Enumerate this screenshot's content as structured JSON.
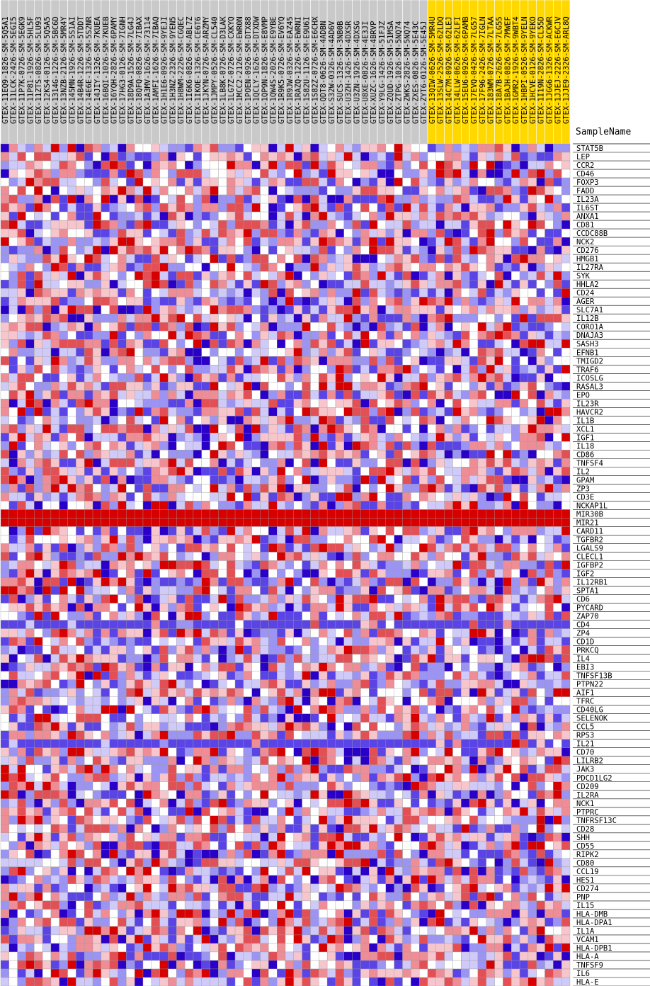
{
  "chart_data": {
    "type": "heatmap",
    "title": "",
    "header_label": "SampleName",
    "colors": {
      "high": "#d60000",
      "mid": "#ffffff",
      "low": "#2a00c8",
      "highlight_column_bg": "#ffd800",
      "normal_column_bg": "#c9c9c9"
    },
    "color_scale": "row-normalized: red = high, blue = low",
    "columns": [
      "GTEX-11EQ9-1826-SM-5Q5A1",
      "GTEX-11LCK-2426-SM-5EGI5",
      "GTEX-11P7K-0726-SM-5EGK9",
      "GTEX-11P81-1926-SM-5HL5F",
      "GTEX-11ZTS-0826-SM-5LU93",
      "GTEX-12KS4-0126-SM-5Q5A5",
      "GTEX-1314G-1226-SM-5BC6D",
      "GTEX-13NZB-2126-SM-5MR4Y",
      "GTEX-145MN-1926-SM-5S1AI",
      "GTEX-14B4R-1226-SM-5TDDT",
      "GTEX-14E6E-1326-SM-5S2NR",
      "GTEX-14JIY-1326-SM-7KUEA",
      "GTEX-16BQI-1026-SM-7KUEB",
      "GTEX-16YQH-2826-SM-6PAMY",
      "GTEX-17HG3-0126-SM-7IGNH",
      "GTEX-18D9A-1526-SM-7LG4J",
      "GTEX-18QFQ-0826-SM-7IBAX",
      "GTEX-1A3MV-1626-SM-73114",
      "GTEX-1AMFI-1626-SM-7IBAQ",
      "GTEX-1H1E6-0926-SM-9YEJI",
      "GTEX-1H3NZ-2326-SM-9YEN5",
      "GTEX-1H8WM-2226-SM-CGQEC",
      "GTEX-1I6K6-0826-SM-ABL7Z",
      "GTEX-1IKOE-1326-SM-CE6T6",
      "GTEX-1JKYN-0726-SM-ARZMY",
      "GTEX-1JMPY-0526-SM-CL540",
      "GTEX-1LB8K-0726-SM-D3LAK",
      "GTEX-1LG7Z-0726-SM-CXKYQ",
      "GTEX-1MCC2-2126-SM-EWR0N",
      "GTEX-1POEN-0926-SM-DTX88",
      "GTEX-1QCLY-1626-SM-DTXDW",
      "GTEX-1QP9N-1826-SM-E8VMP",
      "GTEX-1QW4S-2026-SM-E9YBE",
      "GTEX-1R9K5-0726-SM-EV6YQ",
      "GTEX-1R9JW-0326-SM-EAZ45",
      "GTEX-1RAZQ-1226-SM-EWRNI",
      "GTEX-1S82U-1126-SM-E9U6I",
      "GTEX-1S82Z-0726-SM-E6CHX",
      "GTEX-QDT8-0626-SM-4ADBN",
      "GTEX-S32W-0326-SM-4AD6V",
      "GTEX-SUCS-1326-SM-3NB0B",
      "GTEX-U3ZH-1426-SM-4DXSR",
      "GTEX-U3ZN-1926-SM-4DXSG",
      "GTEX-U8XE-0826-SM-4E3JI",
      "GTEX-XUZC-1626-SM-4BRVP",
      "GTEX-Y9LG-1426-SM-51FJZ",
      "GTEX-ZQUD-1926-SM-51MSA",
      "GTEX-ZTPG-1026-SM-5NQ74",
      "GTEX-ZWKS-2826-SM-5NQ74",
      "GTEX-ZXES-0826-SM-5E43C",
      "GTEX-ZYT6-0126-SM-5E45J",
      "GTEX-13QIW-0626-SM-5MR4U",
      "GTEX-13SLW-2526-SM-62LDQ",
      "GTEX-14C7M-0926-SM-62LEJ",
      "GTEX-14LLW-0626-SM-62LFI",
      "GTEX-15EU6-0926-SM-6PAMB",
      "GTEX-17EVQ-0426-SM-7LG57",
      "GTEX-17F96-2426-SM-7IGLN",
      "GTEX-183WM-0726-SM-7LTAA",
      "GTEX-18A7B-2626-SM-7LG55",
      "GTEX-1BAJH-0826-SM-7MWEF",
      "GTEX-1GMR2-1926-SM-9WBT4",
      "GTEX-1HBPI-0526-SM-9YELN",
      "GTEX-1HCVE-0126-SM-9YEKO",
      "GTEX-1I19N-2826-SM-CL55D",
      "GTEX-1JGG6-1326-SM-ACKWR",
      "GTEX-1JJEJ-2226-SM-E6CJV",
      "GTEX-1JJE9-2326-SM-ARL8Q"
    ],
    "highlighted_column_start": 51,
    "rows": [
      "STAT5B",
      "LEP",
      "CCR2",
      "CD46",
      "FOXP3",
      "FADD",
      "IL23A",
      "IL6ST",
      "ANXA1",
      "CD81",
      "CCDC88B",
      "NCK2",
      "CD276",
      "HMGB1",
      "IL27RA",
      "SYK",
      "HHLA2",
      "CD24",
      "AGER",
      "SLC7A1",
      "IL12B",
      "CORO1A",
      "DNAJA3",
      "SASH3",
      "EFNB1",
      "TMIGD2",
      "TRAF6",
      "ICOSLG",
      "RASAL3",
      "EPO",
      "IL23R",
      "HAVCR2",
      "IL1B",
      "XCL1",
      "IGF1",
      "IL18",
      "CD86",
      "TNFSF4",
      "IL2",
      "GPAM",
      "ZP3",
      "CD3E",
      "NCKAP1L",
      "MIR30B",
      "MIR21",
      "CARD11",
      "TGFBR2",
      "LGALS9",
      "CLECL1",
      "IGFBP2",
      "IGF2",
      "IL12RB1",
      "SPTA1",
      "CD6",
      "PYCARD",
      "ZAP70",
      "CD4",
      "ZP4",
      "CD1D",
      "PRKCQ",
      "IL4",
      "EBI3",
      "TNFSF13B",
      "PTPN22",
      "AIF1",
      "TFRC",
      "CD40LG",
      "SELENOK",
      "CCL5",
      "RPS3",
      "IL21",
      "CD70",
      "LILRB2",
      "JAK3",
      "PDCD1LG2",
      "CD209",
      "IL2RA",
      "NCK1",
      "PTPRC",
      "TNFRSF13C",
      "CD28",
      "SHH",
      "CD55",
      "RIPK2",
      "CD80",
      "CCL19",
      "HES1",
      "CD274",
      "PNP",
      "IL15",
      "HLA-DMB",
      "HLA-DPA1",
      "IL1A",
      "VCAM1",
      "HLA-DPB1",
      "HLA-A",
      "TNFSF9",
      "IL6",
      "HLA-E"
    ],
    "uniform_rows": {
      "MIR30B": 1,
      "MIR21": 1
    },
    "mostly_low_rows": {
      "CD4": -0.85,
      "IL21": -0.85
    }
  }
}
